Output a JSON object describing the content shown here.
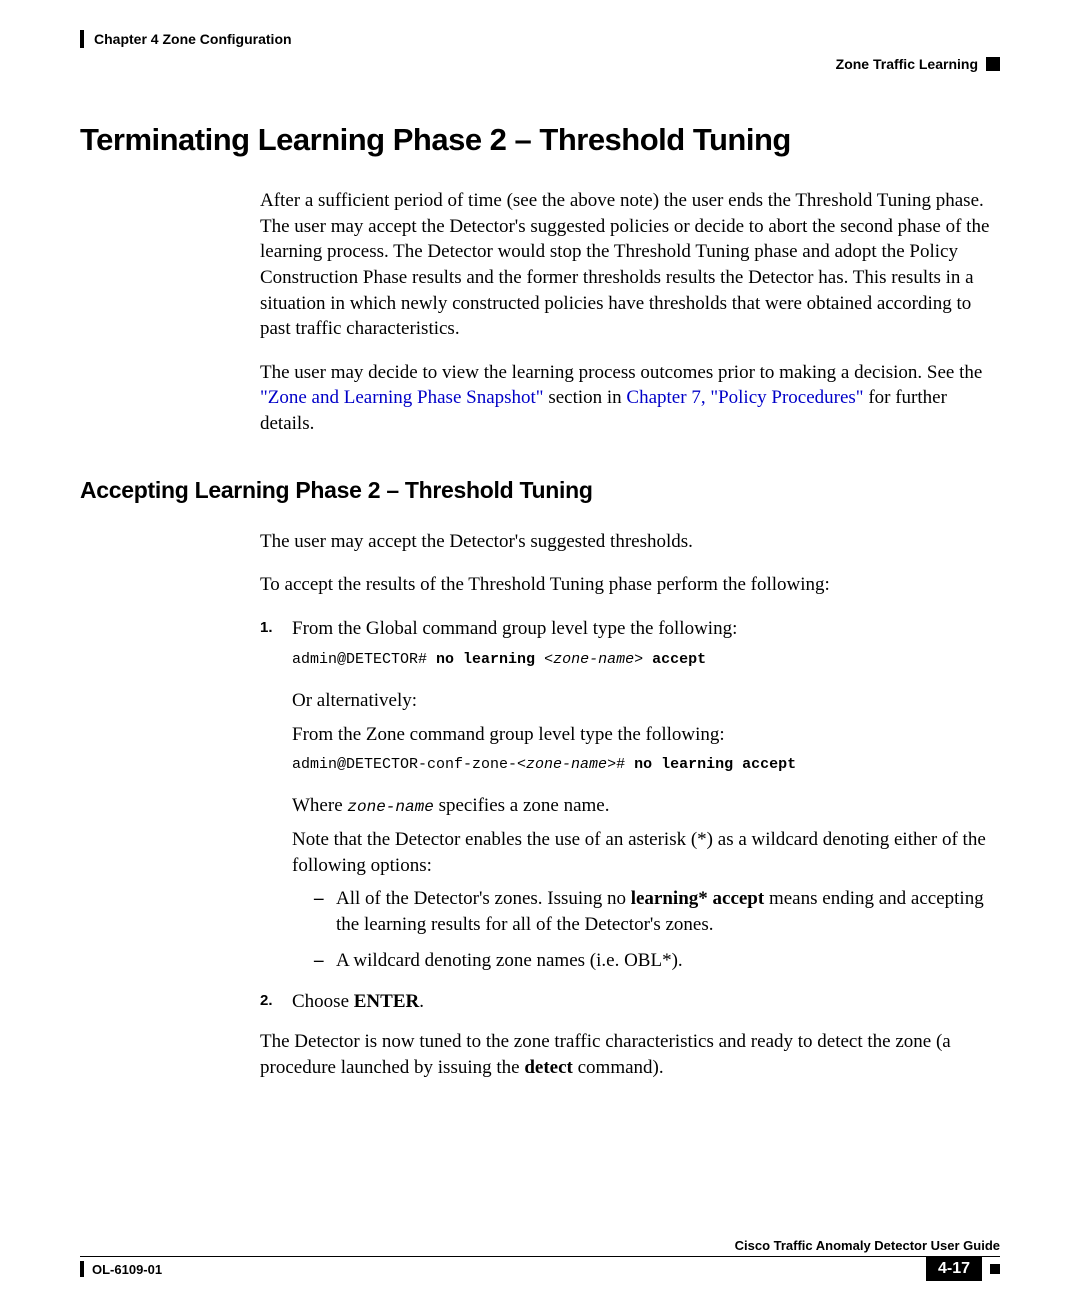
{
  "header": {
    "chapter": "Chapter 4     Zone Configuration",
    "section": "Zone Traffic Learning"
  },
  "main_heading": "Terminating Learning Phase 2 – Threshold Tuning",
  "para1": "After a sufficient period of time (see the above note) the user ends the Threshold Tuning phase. The user may accept the Detector's suggested policies or decide to abort the second phase of the learning process. The Detector would stop the Threshold Tuning phase and adopt the Policy Construction Phase results and the former thresholds results the Detector has. This results in a situation in which newly constructed policies have thresholds that were obtained according to past traffic characteristics.",
  "para2_a": "The user may decide to view the learning process outcomes prior to making a decision. See the ",
  "para2_link1": "\"Zone and Learning Phase Snapshot\"",
  "para2_b": " section in ",
  "para2_link2": "Chapter 7, \"Policy Procedures\"",
  "para2_c": " for further details.",
  "sub_heading": "Accepting Learning Phase 2 – Threshold Tuning",
  "para3": "The user may accept the Detector's suggested thresholds.",
  "para4": "To accept the results of the Threshold Tuning phase perform the following:",
  "step1": {
    "num": "1.",
    "text": "From the Global command group level type the following:",
    "code1_plain": "admin@DETECTOR# ",
    "code1_bold1": "no learning ",
    "code1_italic": "<zone-name>",
    "code1_bold2": " accept",
    "alt": "Or alternatively:",
    "text2": "From the Zone command group level type the following:",
    "code2_a": "admin@DETECTOR-conf-zone-<",
    "code2_b": "zone-name",
    "code2_c": ">#",
    "code2_bold": " no learning accept",
    "where_a": "Where ",
    "where_mono": "zone-name",
    "where_b": " specifies a zone name.",
    "note": "Note that the Detector enables the use of an asterisk (*) as a wildcard denoting either of the following options:",
    "dash1_a": "All of the Detector's zones. Issuing no ",
    "dash1_bold": "learning* accept",
    "dash1_b": " means ending and accepting the learning results for all of the Detector's zones.",
    "dash2": "A wildcard denoting zone names (i.e. OBL*)."
  },
  "step2": {
    "num": "2.",
    "text_a": "Choose ",
    "text_bold": "ENTER",
    "text_b": "."
  },
  "para5_a": "The Detector is now tuned to the zone traffic characteristics and ready to detect the zone (a procedure launched by issuing the ",
  "para5_bold": "detect",
  "para5_b": " command).",
  "footer": {
    "guide": "Cisco Traffic Anomaly Detector User Guide",
    "doc": "OL-6109-01",
    "page": "4-17"
  }
}
